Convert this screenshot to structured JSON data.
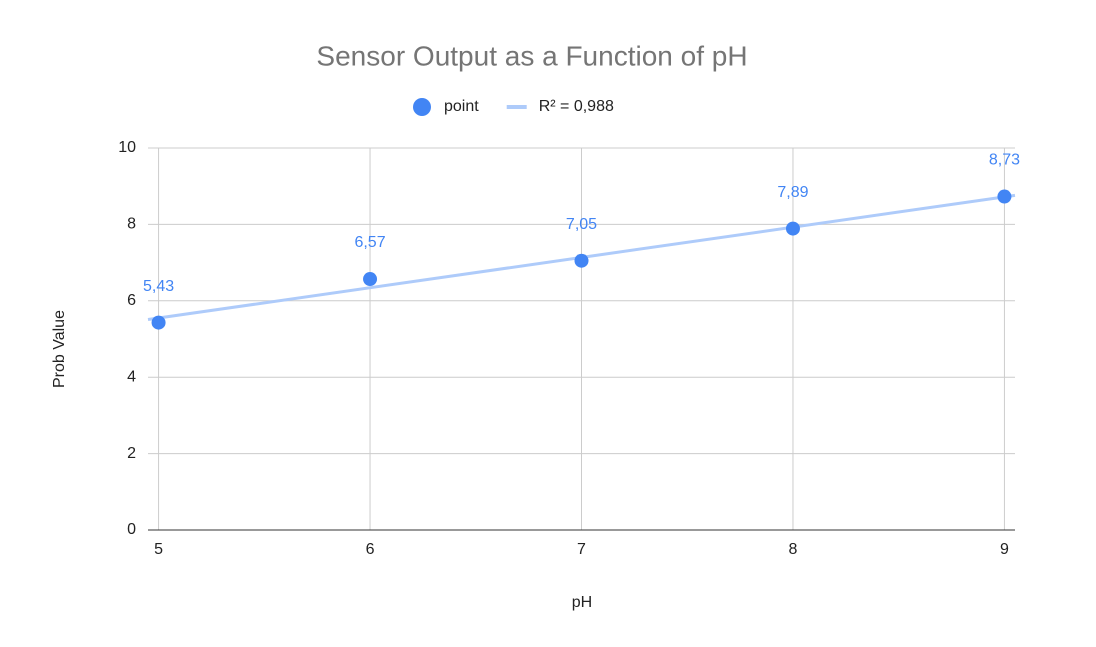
{
  "chart_data": {
    "type": "scatter",
    "title": "Sensor Output as a Function of pH",
    "x_label": "pH",
    "y_label": "Prob Value",
    "series": [
      {
        "name": "point",
        "color": "#4285f4",
        "x": [
          5,
          6,
          7,
          8,
          9
        ],
        "values": [
          5.43,
          6.57,
          7.05,
          7.89,
          8.73
        ],
        "value_labels": [
          "5,43",
          "6,57",
          "7,05",
          "7,89",
          "8,73"
        ]
      },
      {
        "name": "R² = 0,988",
        "type": "line",
        "color": "#aecbfa",
        "x": [
          4.95,
          9.05
        ],
        "values": [
          5.51,
          8.76
        ]
      }
    ],
    "xlim": [
      4.95,
      9.05
    ],
    "ylim": [
      0,
      10
    ],
    "xticks": [
      5,
      6,
      7,
      8,
      9
    ],
    "yticks": [
      0,
      2,
      4,
      6,
      8,
      10
    ],
    "grid": true
  }
}
